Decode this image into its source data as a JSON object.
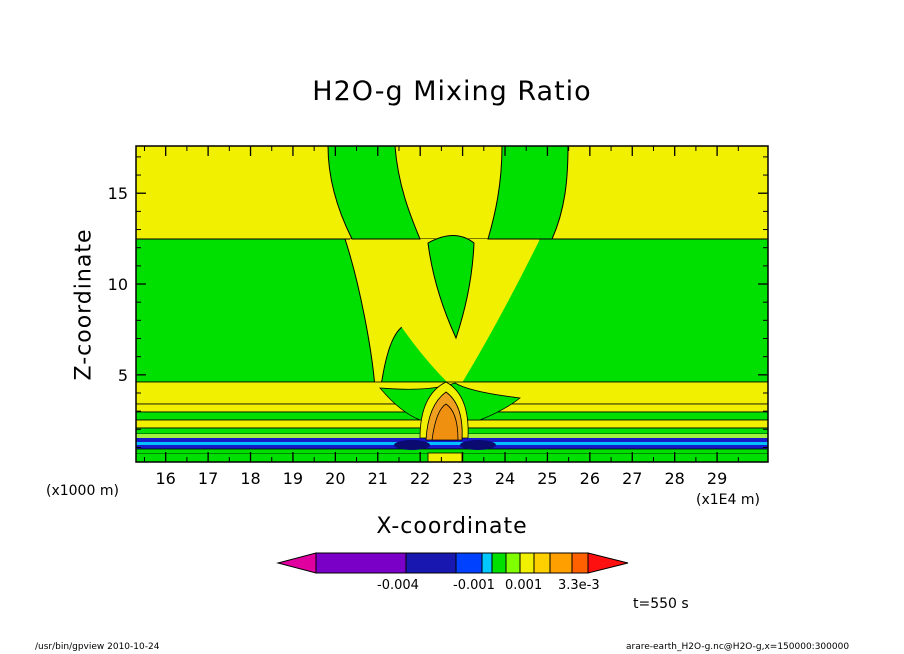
{
  "chart_data": {
    "type": "heatmap",
    "title": "H2O-g Mixing Ratio",
    "xlabel": "X-coordinate",
    "ylabel": "Z-coordinate",
    "x_unit_label": "(x1000 m)",
    "x_scale_label": "(x1E4 m)",
    "xlim": [
      15.3,
      30.2
    ],
    "ylim": [
      0.2,
      17.6
    ],
    "x_ticks": [
      16,
      17,
      18,
      19,
      20,
      21,
      22,
      23,
      24,
      25,
      26,
      27,
      28,
      29
    ],
    "y_ticks": [
      5,
      10,
      15
    ],
    "time_label": "t=550 s",
    "colorbar": {
      "colors": [
        "#e000a0",
        "#7a00c8",
        "#1818b0",
        "#0040ff",
        "#00c8ff",
        "#00e000",
        "#80ff00",
        "#f0f000",
        "#ffd000",
        "#ffa000",
        "#ff6000",
        "#ff1010"
      ],
      "tick_labels": [
        "-0.004",
        "-0.001",
        "0.001",
        "3.3e-3"
      ]
    },
    "regions": {
      "background": "#f0f000",
      "green": "#00e000",
      "orange": "#f0a020",
      "blue": "#1818c8",
      "dark_blue": "#0a0a70",
      "light_green": "#a0f040"
    },
    "footer_left": "/usr/bin/gpview  2010-10-24",
    "footer_right": "arare-earth_H2O-g.nc@H2O-g,x=150000:300000"
  }
}
